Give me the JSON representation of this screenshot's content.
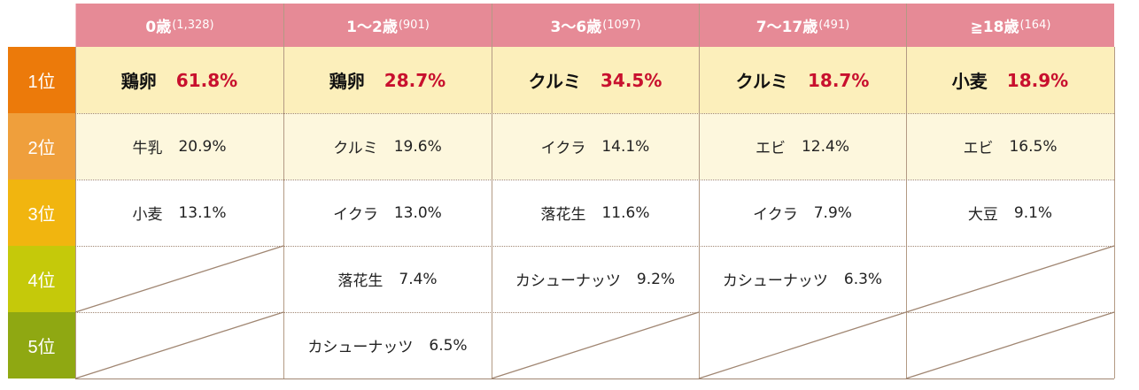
{
  "colors": {
    "header_bg": "#e68a96",
    "row1_bg": "#fcefbb",
    "row2_bg": "#fdf7dd",
    "rank_colors": [
      "#ec7a0a",
      "#ef9f3c",
      "#f1b50f",
      "#c5c90a",
      "#8fa812"
    ],
    "percent_accent": "#c8102e"
  },
  "headers": [
    {
      "age": "0歳",
      "count": "(1,328)"
    },
    {
      "age": "1～2歳",
      "count": "(901)"
    },
    {
      "age": "3～6歳",
      "count": "(1097)"
    },
    {
      "age": "7～17歳",
      "count": "(491)"
    },
    {
      "age": "≧18歳",
      "count": "(164)"
    }
  ],
  "ranks": [
    "1位",
    "2位",
    "3位",
    "4位",
    "5位"
  ],
  "rows": [
    [
      {
        "food": "鶏卵",
        "pct": "61.8%"
      },
      {
        "food": "鶏卵",
        "pct": "28.7%"
      },
      {
        "food": "クルミ",
        "pct": "34.5%"
      },
      {
        "food": "クルミ",
        "pct": "18.7%"
      },
      {
        "food": "小麦",
        "pct": "18.9%"
      }
    ],
    [
      {
        "food": "牛乳",
        "pct": "20.9%"
      },
      {
        "food": "クルミ",
        "pct": "19.6%"
      },
      {
        "food": "イクラ",
        "pct": "14.1%"
      },
      {
        "food": "エビ",
        "pct": "12.4%"
      },
      {
        "food": "エビ",
        "pct": "16.5%"
      }
    ],
    [
      {
        "food": "小麦",
        "pct": "13.1%"
      },
      {
        "food": "イクラ",
        "pct": "13.0%"
      },
      {
        "food": "落花生",
        "pct": "11.6%"
      },
      {
        "food": "イクラ",
        "pct": "7.9%"
      },
      {
        "food": "大豆",
        "pct": "9.1%"
      }
    ],
    [
      null,
      {
        "food": "落花生",
        "pct": "7.4%"
      },
      {
        "food": "カシューナッツ",
        "pct": "9.2%"
      },
      {
        "food": "カシューナッツ",
        "pct": "6.3%"
      },
      null
    ],
    [
      null,
      {
        "food": "カシューナッツ",
        "pct": "6.5%"
      },
      null,
      null,
      null
    ]
  ]
}
